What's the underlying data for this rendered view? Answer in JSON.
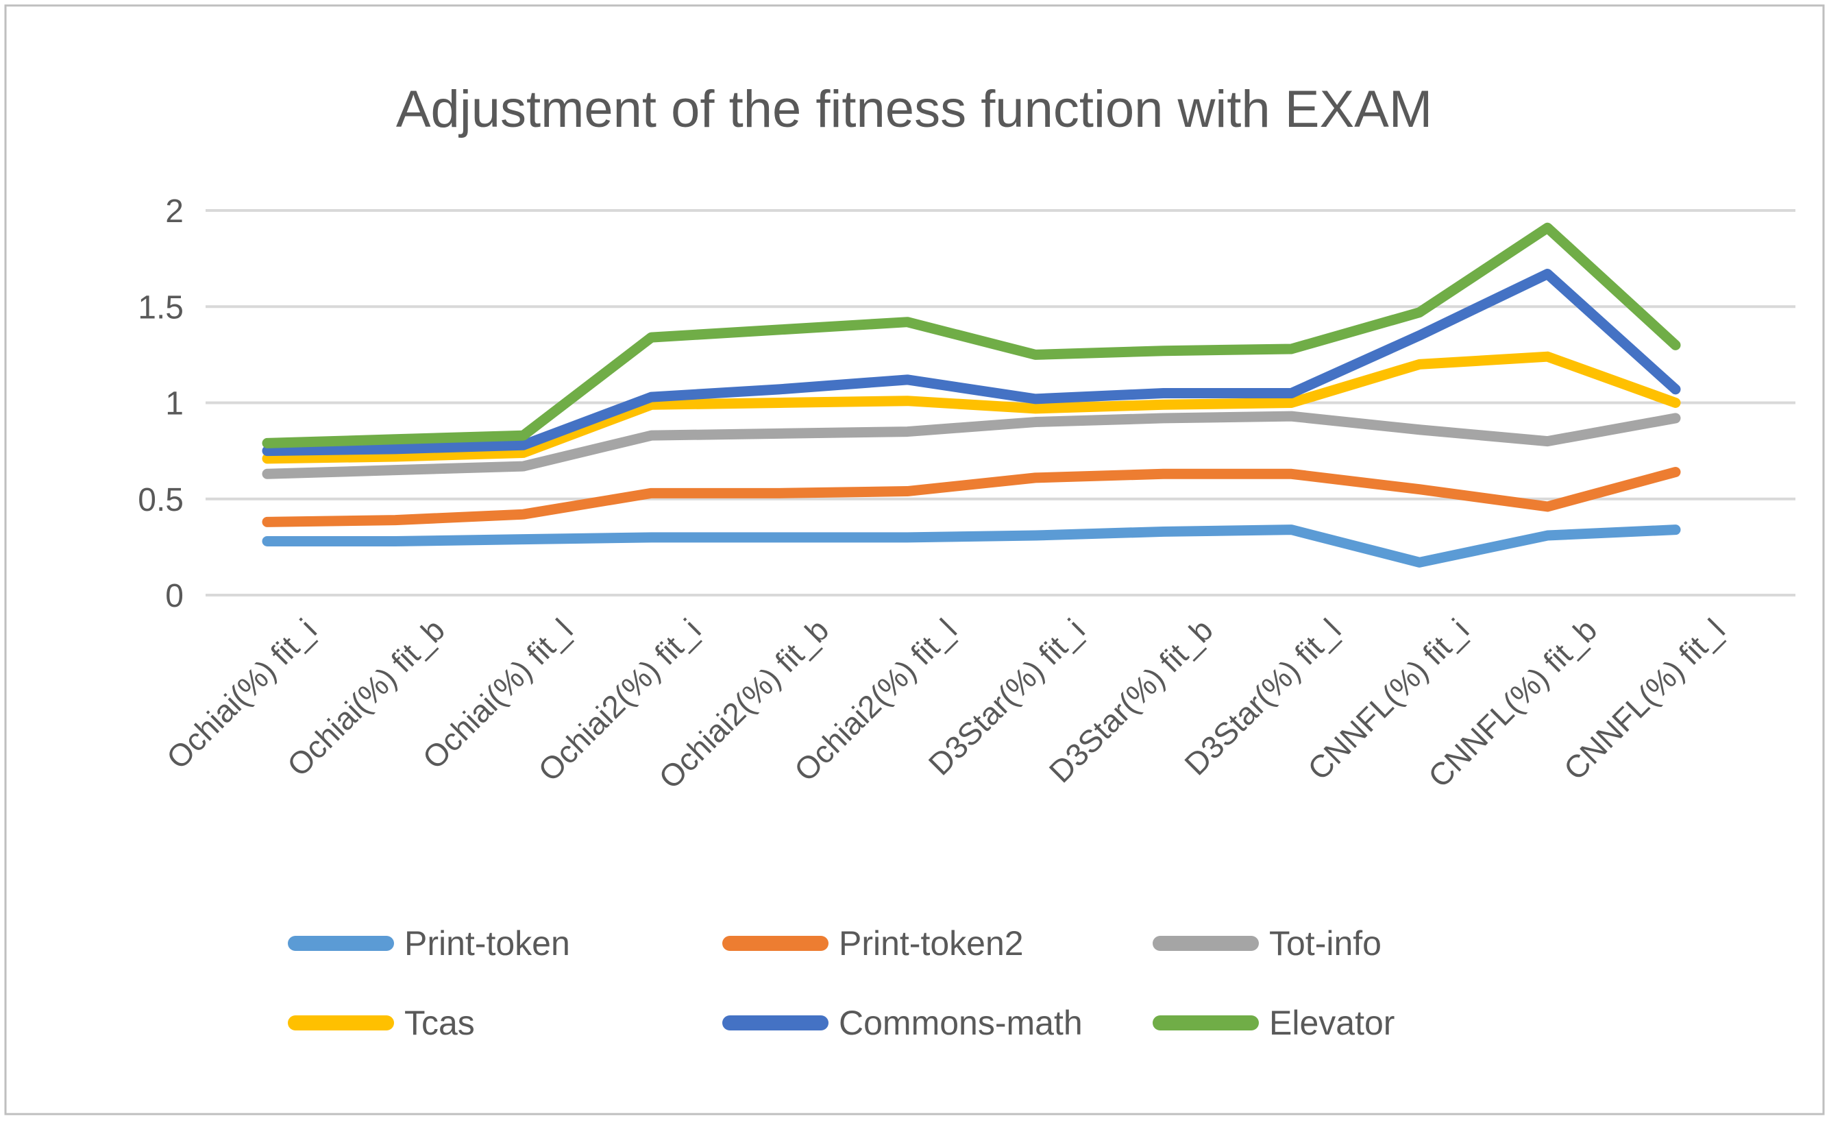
{
  "chart_data": {
    "type": "line",
    "title": "Adjustment of the fitness function with EXAM",
    "xlabel": "",
    "ylabel": "",
    "ylim": [
      0,
      2
    ],
    "y_ticks": [
      0,
      0.5,
      1,
      1.5,
      2
    ],
    "grid": "horizontal",
    "legend_position": "bottom",
    "categories": [
      "Ochiai(%) fit_i",
      "Ochiai(%) fit_b",
      "Ochiai(%) fit_l",
      "Ochiai2(%) fit_i",
      "Ochiai2(%) fit_b",
      "Ochiai2(%) fit_l",
      "D3Star(%) fit_i",
      "D3Star(%) fit_b",
      "D3Star(%) fit_l",
      "CNNFL(%) fit_i",
      "CNNFL(%) fit_b",
      "CNNFL(%) fit_l"
    ],
    "series": [
      {
        "name": "Print-token",
        "color": "#5B9BD5",
        "values": [
          0.28,
          0.28,
          0.29,
          0.3,
          0.3,
          0.3,
          0.31,
          0.33,
          0.34,
          0.17,
          0.31,
          0.34
        ]
      },
      {
        "name": "Print-token2",
        "color": "#ED7D31",
        "values": [
          0.38,
          0.39,
          0.42,
          0.53,
          0.53,
          0.54,
          0.61,
          0.63,
          0.63,
          0.55,
          0.46,
          0.64
        ]
      },
      {
        "name": "Tot-info",
        "color": "#A5A5A5",
        "values": [
          0.63,
          0.65,
          0.67,
          0.83,
          0.84,
          0.85,
          0.9,
          0.92,
          0.93,
          0.86,
          0.8,
          0.92
        ]
      },
      {
        "name": "Tcas",
        "color": "#FFC000",
        "values": [
          0.71,
          0.72,
          0.74,
          0.99,
          1.0,
          1.01,
          0.97,
          0.99,
          1.0,
          1.2,
          1.24,
          1.0
        ]
      },
      {
        "name": "Commons-math",
        "color": "#4472C4",
        "values": [
          0.75,
          0.76,
          0.78,
          1.03,
          1.07,
          1.12,
          1.02,
          1.05,
          1.05,
          1.35,
          1.67,
          1.07
        ]
      },
      {
        "name": "Elevator",
        "color": "#70AD47",
        "values": [
          0.79,
          0.81,
          0.83,
          1.34,
          1.38,
          1.42,
          1.25,
          1.27,
          1.28,
          1.47,
          1.91,
          1.3
        ]
      }
    ],
    "legend_rows": [
      [
        "Print-token",
        "Print-token2",
        "Tot-info"
      ],
      [
        "Tcas",
        "Commons-math",
        "Elevator"
      ]
    ]
  },
  "colors": {
    "text": "#595959",
    "gridline": "#D9D9D9",
    "border": "#BFBFBF",
    "background": "#FFFFFF"
  }
}
